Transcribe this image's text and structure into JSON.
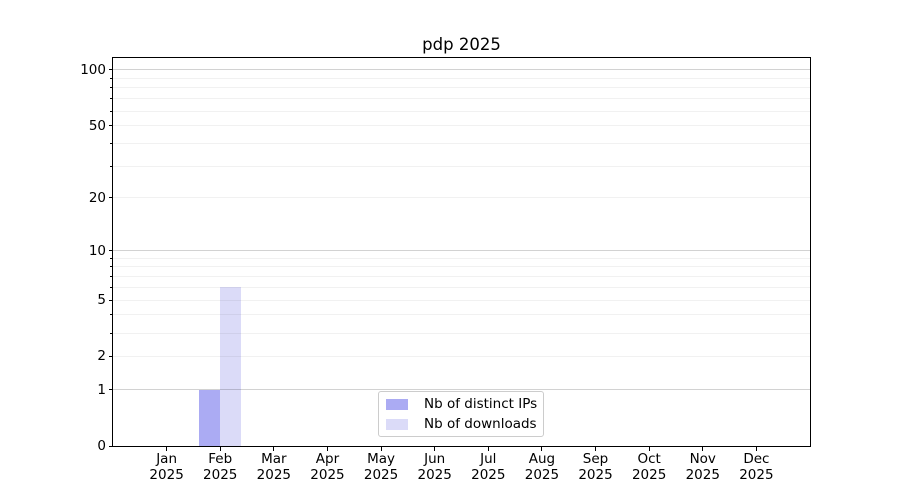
{
  "title": "pdp 2025",
  "chart_data": {
    "type": "bar",
    "title": "pdp 2025",
    "xlabel": "",
    "ylabel": "",
    "categories": [
      "Jan 2025",
      "Feb 2025",
      "Mar 2025",
      "Apr 2025",
      "May 2025",
      "Jun 2025",
      "Jul 2025",
      "Aug 2025",
      "Sep 2025",
      "Oct 2025",
      "Nov 2025",
      "Dec 2025"
    ],
    "series": [
      {
        "name": "Nb of distinct IPs",
        "color": "#ababf3",
        "values": [
          0,
          1,
          0,
          0,
          0,
          0,
          0,
          0,
          0,
          0,
          0,
          0
        ]
      },
      {
        "name": "Nb of downloads",
        "color": "#dbdbf8",
        "values": [
          0,
          6,
          0,
          0,
          0,
          0,
          0,
          0,
          0,
          0,
          0,
          0
        ]
      }
    ],
    "yscale": "log1p",
    "ylim": [
      0,
      116
    ],
    "y_ticks": [
      0,
      1,
      2,
      5,
      10,
      20,
      50,
      100
    ],
    "y_major_gridlines": [
      1,
      10,
      100
    ],
    "y_minor_gridlines": [
      2,
      3,
      4,
      5,
      6,
      7,
      8,
      9,
      20,
      30,
      40,
      50,
      60,
      70,
      80,
      90
    ],
    "grid": true,
    "legend_position": "lower center"
  },
  "legend": {
    "items": [
      {
        "label": "Nb of distinct IPs",
        "color": "#ababf3"
      },
      {
        "label": "Nb of downloads",
        "color": "#dbdbf8"
      }
    ]
  },
  "colors": {
    "bar_distinct_ips": "#ababf3",
    "bar_downloads": "#dbdbf8",
    "major_grid": "#d3d3d3",
    "minor_grid": "#efefef",
    "spine": "#000000",
    "legend_border": "#cccccc",
    "background": "#ffffff"
  }
}
